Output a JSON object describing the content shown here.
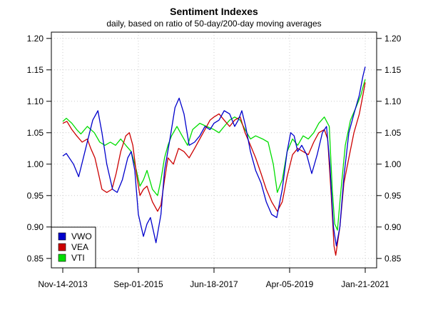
{
  "chart_data": {
    "type": "line",
    "title": "Sentiment Indexes",
    "subtitle": "daily, based on ratio of 50-day/200-day moving averages",
    "xlabel": "",
    "ylabel": "",
    "x_tick_labels": [
      "Nov-14-2013",
      "Sep-01-2015",
      "Jun-18-2017",
      "Apr-05-2019",
      "Jan-21-2021"
    ],
    "x_range": [
      "2013-11-14",
      "2021-01-21"
    ],
    "y_ticks": [
      "0.85",
      "0.90",
      "0.95",
      "1.00",
      "1.05",
      "1.10",
      "1.15",
      "1.20"
    ],
    "ylim": [
      0.835,
      1.21
    ],
    "grid": true,
    "legend_position": "bottom-left",
    "colors": {
      "VWO": "#0000cc",
      "VEA": "#cc0000",
      "VTI": "#00dd00",
      "grid": "#cccccc"
    },
    "series": [
      {
        "name": "VWO",
        "points": [
          [
            "2013-11-14",
            1.013
          ],
          [
            "2013-12-15",
            1.017
          ],
          [
            "2014-02-15",
            1.0
          ],
          [
            "2014-04-01",
            0.98
          ],
          [
            "2014-06-01",
            1.025
          ],
          [
            "2014-08-01",
            1.07
          ],
          [
            "2014-09-15",
            1.085
          ],
          [
            "2014-10-20",
            1.05
          ],
          [
            "2014-12-01",
            1.0
          ],
          [
            "2015-01-20",
            0.96
          ],
          [
            "2015-03-01",
            0.955
          ],
          [
            "2015-04-15",
            0.975
          ],
          [
            "2015-06-01",
            1.01
          ],
          [
            "2015-07-01",
            1.02
          ],
          [
            "2015-08-01",
            0.99
          ],
          [
            "2015-09-01",
            0.92
          ],
          [
            "2015-10-15",
            0.885
          ],
          [
            "2015-11-15",
            0.905
          ],
          [
            "2015-12-15",
            0.915
          ],
          [
            "2016-02-01",
            0.875
          ],
          [
            "2016-03-15",
            0.92
          ],
          [
            "2016-04-15",
            0.99
          ],
          [
            "2016-06-01",
            1.04
          ],
          [
            "2016-07-15",
            1.09
          ],
          [
            "2016-08-20",
            1.105
          ],
          [
            "2016-10-01",
            1.08
          ],
          [
            "2016-11-15",
            1.03
          ],
          [
            "2017-01-01",
            1.035
          ],
          [
            "2017-02-15",
            1.045
          ],
          [
            "2017-04-01",
            1.06
          ],
          [
            "2017-05-15",
            1.055
          ],
          [
            "2017-06-18",
            1.065
          ],
          [
            "2017-08-01",
            1.07
          ],
          [
            "2017-09-15",
            1.085
          ],
          [
            "2017-11-01",
            1.08
          ],
          [
            "2017-12-15",
            1.06
          ],
          [
            "2018-01-15",
            1.07
          ],
          [
            "2018-02-15",
            1.085
          ],
          [
            "2018-03-20",
            1.06
          ],
          [
            "2018-05-01",
            1.02
          ],
          [
            "2018-06-15",
            0.99
          ],
          [
            "2018-08-01",
            0.97
          ],
          [
            "2018-09-15",
            0.94
          ],
          [
            "2018-11-01",
            0.92
          ],
          [
            "2018-12-15",
            0.915
          ],
          [
            "2019-02-01",
            0.96
          ],
          [
            "2019-03-15",
            1.02
          ],
          [
            "2019-04-15",
            1.05
          ],
          [
            "2019-05-15",
            1.045
          ],
          [
            "2019-06-15",
            1.02
          ],
          [
            "2019-07-20",
            1.03
          ],
          [
            "2019-09-01",
            1.015
          ],
          [
            "2019-10-15",
            0.985
          ],
          [
            "2019-12-01",
            1.015
          ],
          [
            "2020-01-15",
            1.05
          ],
          [
            "2020-02-20",
            1.06
          ],
          [
            "2020-03-20",
            1.0
          ],
          [
            "2020-04-20",
            0.9
          ],
          [
            "2020-05-15",
            0.87
          ],
          [
            "2020-06-15",
            0.9
          ],
          [
            "2020-07-20",
            0.98
          ],
          [
            "2020-09-01",
            1.05
          ],
          [
            "2020-10-15",
            1.08
          ],
          [
            "2020-12-01",
            1.11
          ],
          [
            "2021-01-01",
            1.14
          ],
          [
            "2021-01-21",
            1.155
          ]
        ]
      },
      {
        "name": "VEA",
        "points": [
          [
            "2013-11-14",
            1.065
          ],
          [
            "2013-12-20",
            1.068
          ],
          [
            "2014-02-01",
            1.055
          ],
          [
            "2014-03-15",
            1.045
          ],
          [
            "2014-05-01",
            1.035
          ],
          [
            "2014-06-15",
            1.04
          ],
          [
            "2014-07-15",
            1.025
          ],
          [
            "2014-08-20",
            1.01
          ],
          [
            "2014-09-20",
            0.985
          ],
          [
            "2014-10-20",
            0.96
          ],
          [
            "2014-12-01",
            0.955
          ],
          [
            "2015-01-15",
            0.96
          ],
          [
            "2015-02-20",
            0.985
          ],
          [
            "2015-04-01",
            1.02
          ],
          [
            "2015-05-15",
            1.045
          ],
          [
            "2015-06-15",
            1.05
          ],
          [
            "2015-07-15",
            1.03
          ],
          [
            "2015-08-15",
            0.985
          ],
          [
            "2015-09-15",
            0.95
          ],
          [
            "2015-10-15",
            0.96
          ],
          [
            "2015-11-15",
            0.965
          ],
          [
            "2016-01-01",
            0.94
          ],
          [
            "2016-02-15",
            0.925
          ],
          [
            "2016-03-15",
            0.935
          ],
          [
            "2016-04-15",
            0.975
          ],
          [
            "2016-05-15",
            1.01
          ],
          [
            "2016-07-01",
            1.0
          ],
          [
            "2016-08-15",
            1.025
          ],
          [
            "2016-10-01",
            1.02
          ],
          [
            "2016-11-15",
            1.01
          ],
          [
            "2017-01-01",
            1.025
          ],
          [
            "2017-02-15",
            1.04
          ],
          [
            "2017-04-01",
            1.055
          ],
          [
            "2017-05-15",
            1.07
          ],
          [
            "2017-06-18",
            1.075
          ],
          [
            "2017-08-01",
            1.08
          ],
          [
            "2017-09-15",
            1.07
          ],
          [
            "2017-11-01",
            1.06
          ],
          [
            "2017-12-15",
            1.07
          ],
          [
            "2018-02-01",
            1.075
          ],
          [
            "2018-03-15",
            1.05
          ],
          [
            "2018-05-01",
            1.03
          ],
          [
            "2018-06-15",
            1.01
          ],
          [
            "2018-08-01",
            0.985
          ],
          [
            "2018-09-15",
            0.96
          ],
          [
            "2018-11-01",
            0.94
          ],
          [
            "2018-12-20",
            0.925
          ],
          [
            "2019-02-01",
            0.94
          ],
          [
            "2019-03-15",
            0.98
          ],
          [
            "2019-05-01",
            1.015
          ],
          [
            "2019-06-15",
            1.025
          ],
          [
            "2019-08-01",
            1.02
          ],
          [
            "2019-09-15",
            1.015
          ],
          [
            "2019-11-01",
            1.035
          ],
          [
            "2019-12-15",
            1.05
          ],
          [
            "2020-02-01",
            1.055
          ],
          [
            "2020-03-01",
            1.04
          ],
          [
            "2020-04-01",
            0.95
          ],
          [
            "2020-04-25",
            0.87
          ],
          [
            "2020-05-10",
            0.855
          ],
          [
            "2020-06-15",
            0.9
          ],
          [
            "2020-07-20",
            0.97
          ],
          [
            "2020-09-01",
            1.01
          ],
          [
            "2020-10-15",
            1.05
          ],
          [
            "2020-12-01",
            1.08
          ],
          [
            "2021-01-01",
            1.11
          ],
          [
            "2021-01-21",
            1.13
          ]
        ]
      },
      {
        "name": "VTI",
        "points": [
          [
            "2013-11-14",
            1.068
          ],
          [
            "2013-12-15",
            1.073
          ],
          [
            "2014-02-01",
            1.065
          ],
          [
            "2014-03-15",
            1.055
          ],
          [
            "2014-04-20",
            1.048
          ],
          [
            "2014-06-15",
            1.06
          ],
          [
            "2014-08-15",
            1.05
          ],
          [
            "2014-10-01",
            1.035
          ],
          [
            "2014-11-15",
            1.03
          ],
          [
            "2015-01-01",
            1.035
          ],
          [
            "2015-02-15",
            1.03
          ],
          [
            "2015-04-01",
            1.04
          ],
          [
            "2015-05-15",
            1.03
          ],
          [
            "2015-07-01",
            1.02
          ],
          [
            "2015-08-15",
            0.99
          ],
          [
            "2015-09-15",
            0.965
          ],
          [
            "2015-10-15",
            0.975
          ],
          [
            "2015-11-15",
            0.99
          ],
          [
            "2016-01-01",
            0.96
          ],
          [
            "2016-02-15",
            0.95
          ],
          [
            "2016-03-15",
            0.975
          ],
          [
            "2016-04-15",
            1.01
          ],
          [
            "2016-05-15",
            1.03
          ],
          [
            "2016-06-15",
            1.045
          ],
          [
            "2016-08-01",
            1.06
          ],
          [
            "2016-09-15",
            1.045
          ],
          [
            "2016-11-01",
            1.03
          ],
          [
            "2016-12-15",
            1.055
          ],
          [
            "2017-02-15",
            1.065
          ],
          [
            "2017-04-15",
            1.06
          ],
          [
            "2017-06-18",
            1.055
          ],
          [
            "2017-08-01",
            1.05
          ],
          [
            "2017-09-15",
            1.06
          ],
          [
            "2017-11-01",
            1.07
          ],
          [
            "2017-12-15",
            1.075
          ],
          [
            "2018-02-01",
            1.07
          ],
          [
            "2018-03-15",
            1.055
          ],
          [
            "2018-05-01",
            1.04
          ],
          [
            "2018-06-15",
            1.045
          ],
          [
            "2018-08-15",
            1.04
          ],
          [
            "2018-10-01",
            1.035
          ],
          [
            "2018-11-15",
            1.0
          ],
          [
            "2018-12-20",
            0.955
          ],
          [
            "2019-02-01",
            0.975
          ],
          [
            "2019-03-15",
            1.02
          ],
          [
            "2019-05-01",
            1.04
          ],
          [
            "2019-06-15",
            1.03
          ],
          [
            "2019-08-01",
            1.045
          ],
          [
            "2019-09-15",
            1.04
          ],
          [
            "2019-11-01",
            1.05
          ],
          [
            "2019-12-15",
            1.065
          ],
          [
            "2020-02-01",
            1.075
          ],
          [
            "2020-03-15",
            1.06
          ],
          [
            "2020-04-10",
            0.96
          ],
          [
            "2020-05-01",
            0.905
          ],
          [
            "2020-05-25",
            0.895
          ],
          [
            "2020-06-20",
            0.95
          ],
          [
            "2020-08-01",
            1.03
          ],
          [
            "2020-09-15",
            1.07
          ],
          [
            "2020-11-01",
            1.09
          ],
          [
            "2020-12-15",
            1.11
          ],
          [
            "2021-01-05",
            1.125
          ],
          [
            "2021-01-21",
            1.135
          ]
        ]
      }
    ]
  }
}
